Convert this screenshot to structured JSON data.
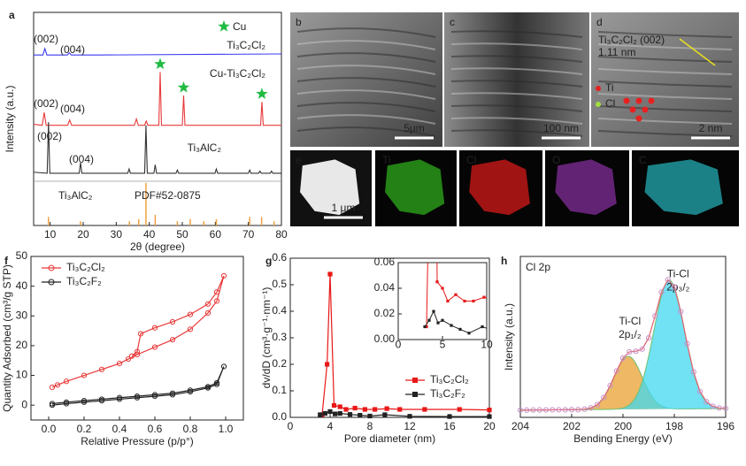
{
  "chart_data": [
    {
      "type": "line",
      "panel": "a",
      "xlabel": "2θ (degree)",
      "ylabel": "Intensity (a.u.)",
      "xlim": [
        5,
        80
      ],
      "xticks": [
        10,
        20,
        30,
        40,
        50,
        60,
        70,
        80
      ],
      "ylim": [
        0,
        100
      ],
      "series": [
        {
          "name": "Ti₃C₂Cl₂",
          "color": "#3a3af0",
          "x": [
            5,
            7.8,
            8.4,
            9.0,
            15.2,
            15.8,
            16.4,
            25,
            80
          ],
          "values": [
            80,
            80,
            83,
            80,
            80,
            81,
            80,
            80,
            80.5
          ]
        },
        {
          "name": "Cu-Ti₃C₂Cl₂",
          "color": "#e83a3a",
          "x": [
            5,
            7.6,
            8.2,
            8.8,
            15.3,
            15.9,
            16.5,
            35.5,
            36.1,
            36.7,
            38.6,
            39.1,
            39.6,
            42.9,
            43.3,
            43.7,
            50.0,
            50.4,
            50.8,
            73.7,
            74.1,
            74.5,
            80
          ],
          "values": [
            47.5,
            47,
            53,
            47,
            47,
            49.5,
            47,
            47,
            50,
            47,
            47,
            49,
            47,
            47,
            72,
            47,
            47,
            61,
            47,
            47,
            58,
            47,
            47
          ]
        },
        {
          "name": "Ti₃AlC₂",
          "color": "#333333",
          "x": [
            5,
            9.1,
            9.5,
            9.9,
            18.8,
            19.2,
            19.6,
            33.5,
            33.9,
            34.3,
            38.6,
            39.0,
            39.4,
            41.4,
            41.8,
            42.2,
            48.1,
            48.5,
            48.9,
            59.9,
            60.3,
            60.7,
            70.0,
            70.4,
            70.8,
            73.1,
            73.5,
            73.9,
            76.6,
            77.0,
            77.4,
            80
          ],
          "values": [
            25,
            24.5,
            48.5,
            24.5,
            24.5,
            29.5,
            24.5,
            24.5,
            26.5,
            24.5,
            24.5,
            47,
            24.5,
            24.5,
            28.5,
            24.5,
            24.5,
            26,
            24.5,
            24.5,
            26.5,
            24.5,
            24.5,
            26,
            24.5,
            24.5,
            25.5,
            24.5,
            24.5,
            25.5,
            24.5,
            24.5
          ]
        }
      ],
      "reference": {
        "name": "PDF#52-0875",
        "label": "Ti₃AlC₂",
        "color": "#f0a040",
        "x": [
          9.5,
          19.2,
          34,
          36.8,
          39,
          41.8,
          48.5,
          52.4,
          56.5,
          60.3,
          70.4,
          74,
          77.8
        ],
        "values": [
          4,
          2,
          2,
          3,
          20,
          5,
          2,
          3,
          2,
          3,
          4,
          4,
          2
        ]
      },
      "cu_marker": {
        "label": "Cu",
        "color": "#22bb44",
        "x": [
          43.3,
          50.4,
          74.1
        ]
      },
      "annotations": [
        {
          "text": "(002)",
          "color": "#3a3af0"
        },
        {
          "text": "(004)",
          "color": "#3a3af0"
        },
        {
          "text": "(002)",
          "color": "#e83a3a"
        },
        {
          "text": "(004)",
          "color": "#e83a3a"
        },
        {
          "text": "(002)",
          "color": "#333333"
        },
        {
          "text": "(004)",
          "color": "#333333"
        }
      ]
    },
    {
      "type": "line",
      "panel": "f",
      "xlabel": "Relative Pressure (p/p°)",
      "ylabel": "Quantity Adsorbed (cm³/g STP)",
      "xlim": [
        -0.1,
        1.1
      ],
      "xticks": [
        {
          "value": 0,
          "label": "0.0"
        },
        0.2,
        0.4,
        0.6,
        0.8,
        {
          "value": 1,
          "label": "1.0"
        }
      ],
      "ylim": [
        -5,
        50
      ],
      "yticks": [
        0,
        10,
        20,
        30,
        40,
        50
      ],
      "legend": "upper left",
      "series": [
        {
          "name": "Ti₃C₂Cl₂",
          "color": "#e83a3a",
          "marker": "circle",
          "x": [
            0.02,
            0.05,
            0.1,
            0.2,
            0.3,
            0.4,
            0.45,
            0.5,
            0.6,
            0.7,
            0.8,
            0.9,
            0.95,
            0.99,
            0.95,
            0.9,
            0.8,
            0.7,
            0.6,
            0.52,
            0.5,
            0.47
          ],
          "values": [
            6,
            6.8,
            8,
            10,
            12,
            14,
            15.5,
            17,
            19.5,
            22,
            25.5,
            31,
            35,
            43.5,
            38,
            34,
            30.5,
            28,
            26,
            24,
            18,
            16.5
          ]
        },
        {
          "name": "Ti₃C₂F₂",
          "color": "#222222",
          "marker": "circle",
          "x": [
            0.02,
            0.1,
            0.2,
            0.3,
            0.4,
            0.5,
            0.6,
            0.7,
            0.8,
            0.9,
            0.95,
            0.99,
            0.95,
            0.9,
            0.8,
            0.7,
            0.6,
            0.5,
            0.4,
            0.3,
            0.2,
            0.1,
            0.02
          ],
          "values": [
            0,
            0.5,
            1,
            1.5,
            2,
            2.5,
            3,
            3.5,
            4.5,
            5.8,
            7,
            13,
            7.5,
            6.2,
            5,
            4,
            3.5,
            3,
            2.5,
            2,
            1.5,
            1,
            0.5
          ]
        }
      ]
    },
    {
      "type": "line",
      "panel": "g",
      "xlabel": "Pore diameter (nm)",
      "ylabel": "dv/dD (cm³·g⁻¹·nm⁻¹)",
      "xlim": [
        0,
        20
      ],
      "xticks": [
        0,
        4,
        8,
        12,
        16,
        20
      ],
      "ylim": [
        0,
        0.6
      ],
      "yticks": [
        {
          "value": 0,
          "label": "0.0"
        },
        0.1,
        0.2,
        0.3,
        0.4,
        0.5,
        0.6
      ],
      "legend": "lower right",
      "series": [
        {
          "name": "Ti₃C₂Cl₂",
          "color": "#e81818",
          "marker": "square",
          "x": [
            3.2,
            3.7,
            4.0,
            4.4,
            5.0,
            5.6,
            6.5,
            7.5,
            8.5,
            9.7,
            11,
            13.5,
            17,
            20
          ],
          "values": [
            0.01,
            0.2,
            0.54,
            0.045,
            0.04,
            0.03,
            0.035,
            0.03,
            0.03,
            0.033,
            0.03,
            0.03,
            0.03,
            0.028
          ]
        },
        {
          "name": "Ti₃C₂F₂",
          "color": "#222222",
          "marker": "square",
          "x": [
            3.0,
            3.5,
            4.0,
            4.5,
            5.0,
            6.0,
            7.0,
            8.0,
            9.5,
            12,
            16,
            20
          ],
          "values": [
            0.01,
            0.015,
            0.022,
            0.013,
            0.015,
            0.011,
            0.008,
            0.005,
            0.01,
            0.004,
            0.003,
            0.003
          ]
        }
      ],
      "inset": {
        "xlim": [
          0,
          10
        ],
        "xticks": [
          0,
          5,
          10
        ],
        "ylim": [
          0,
          0.06
        ],
        "yticks": [
          {
            "value": 0,
            "label": "0.00"
          },
          {
            "value": 0.02,
            "label": "0.02"
          },
          {
            "value": 0.04,
            "label": "0.04"
          },
          {
            "value": 0.06,
            "label": "0.06"
          }
        ]
      }
    },
    {
      "type": "line",
      "panel": "h",
      "label": "Cl 2p",
      "xlabel": "Bending Energy (eV)",
      "ylabel": "Intensity (a.u.)",
      "xlim": [
        204,
        196
      ],
      "xticks": [
        204,
        202,
        200,
        198,
        196
      ],
      "ylim": [
        0,
        100
      ],
      "series": [
        {
          "color": "#c890c8",
          "line_color": "#e06070",
          "marker": "circle",
          "x": [
            204,
            203.75,
            203.5,
            203.25,
            203,
            202.75,
            202.5,
            202.25,
            202,
            201.75,
            201.5,
            201.25,
            201,
            200.75,
            200.5,
            200.25,
            200,
            199.75,
            199.5,
            199.25,
            199,
            198.75,
            198.5,
            198.25,
            198,
            197.75,
            197.5,
            197.25,
            197,
            196.75,
            196.5,
            196.25,
            196
          ],
          "values": [
            4.5,
            4.53,
            4.56,
            4.59,
            4.62,
            4.7,
            4.7,
            4.7,
            4.8,
            4.8,
            5.1,
            5.9,
            7.9,
            12.3,
            19.7,
            28.8,
            36.8,
            40.7,
            41.1,
            42.4,
            49.4,
            63,
            77.8,
            85.5,
            81.1,
            65.7,
            45.8,
            28.2,
            16.1,
            9.7,
            6.9,
            5.8,
            5.6
          ]
        }
      ],
      "baseline": [
        4.5,
        5.46
      ],
      "components": [
        {
          "label": "Ti-Cl",
          "sublabel": "2p₁/₂",
          "label_color": "#3aa040",
          "color": "#e8a030",
          "center": 199.8,
          "height": 33,
          "sigma": 0.55
        },
        {
          "label": "Ti-Cl",
          "sublabel": "2p₃/₂",
          "label_color": "#b070d0",
          "color": "#40d8f0",
          "center": 198.2,
          "height": 80,
          "sigma": 0.6
        }
      ]
    }
  ],
  "images": [
    {
      "label": "b",
      "scale": "5μm"
    },
    {
      "label": "c",
      "scale": "100 nm"
    },
    {
      "label": "d",
      "scale": "2 nm",
      "annotations": [
        "Ti₃C₂Cl₂ (002)",
        "1.11 nm",
        "Ti",
        "Cl"
      ]
    },
    {
      "label": "e",
      "scale": "1 μm"
    },
    {
      "label": "Ti"
    },
    {
      "label": "Cl"
    },
    {
      "label": "O"
    },
    {
      "label": "C"
    }
  ]
}
